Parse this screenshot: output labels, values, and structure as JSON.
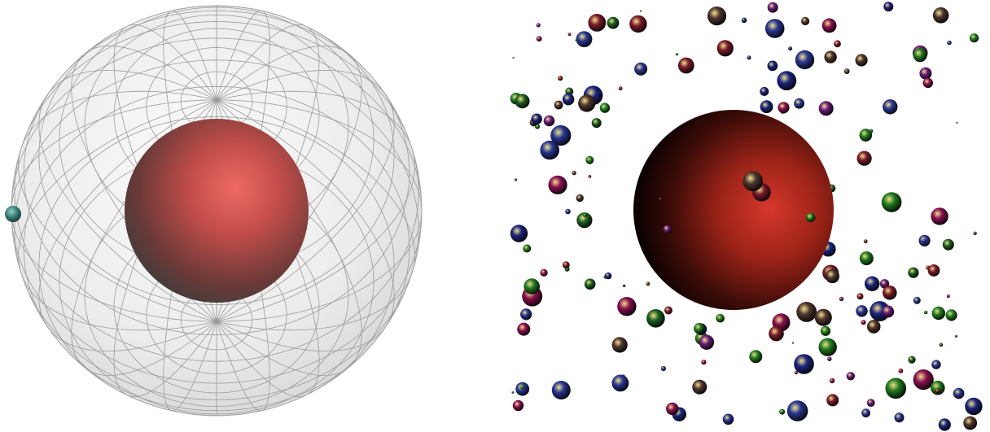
{
  "left_scene": {
    "outer_sphere_color": "#e4e4e4",
    "grid_line_color": "#9a9a9a",
    "inner_sphere_color": "#e0605a",
    "inner_sphere_shadow": "#3f3f3f",
    "surface_particle_color": "#2f6f66"
  },
  "right_scene": {
    "central_sphere_color": "#cf2e22",
    "central_sphere_shadow": "#000000",
    "particle_palette": [
      "#1f7a1f",
      "#1a237e",
      "#7a1a2a",
      "#6a1b7a",
      "#1b5e20",
      "#283593",
      "#880e4f",
      "#4e342e"
    ]
  }
}
